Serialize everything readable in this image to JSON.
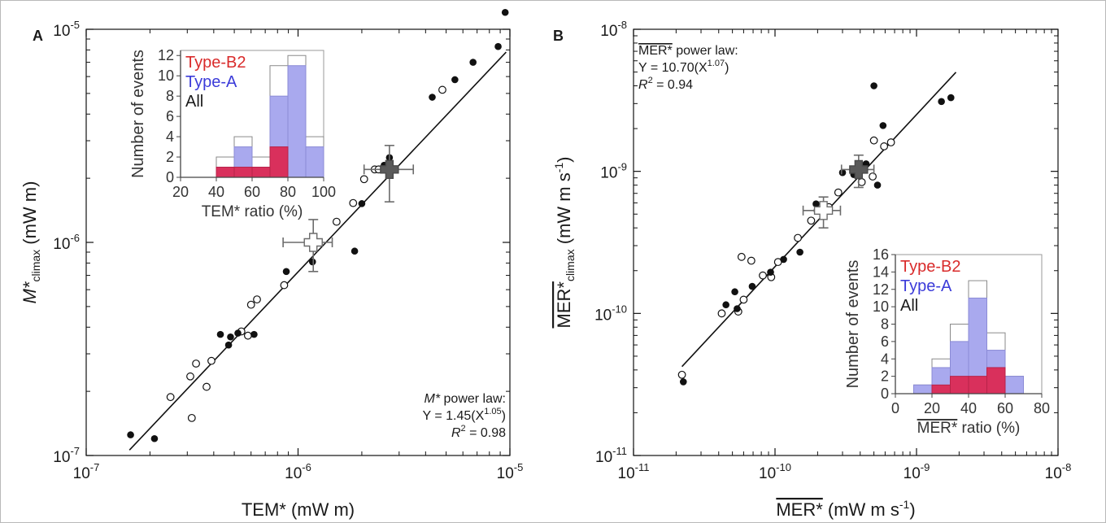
{
  "chart_data": [
    {
      "type": "scatter",
      "panel_label": "A",
      "scale": "log",
      "xlim": [
        1e-07,
        1e-05
      ],
      "ylim": [
        1e-07,
        1e-05
      ],
      "x_ticks": [
        {
          "value": 1e-07,
          "base": "10",
          "exp": "-7"
        },
        {
          "value": 1e-06,
          "base": "10",
          "exp": "-6"
        },
        {
          "value": 1e-05,
          "base": "10",
          "exp": "-5"
        }
      ],
      "y_ticks": [
        {
          "value": 1e-07,
          "base": "10",
          "exp": "-7"
        },
        {
          "value": 1e-06,
          "base": "10",
          "exp": "-6"
        },
        {
          "value": 1e-05,
          "base": "10",
          "exp": "-5"
        }
      ],
      "xlabel": "TEM* (mW m)",
      "ylabel": {
        "main": "M*",
        "sub": "climax",
        "unit": " (mW m)"
      },
      "fit": {
        "title_sym": "M*",
        "title_rest": " power law:",
        "eq_pre": "Y = 1.45(X",
        "eq_exp": "1.05",
        "eq_post": ")",
        "r2_label": "R",
        "r2_value": " = 0.98",
        "x_range": [
          1.6e-07,
          9.6e-06
        ],
        "coef": 1.45,
        "power": 1.05
      },
      "filled": [
        [
          1.62e-07,
          1.25e-07
        ],
        [
          2.1e-07,
          1.2e-07
        ],
        [
          4.3e-07,
          3.7e-07
        ],
        [
          4.7e-07,
          3.3e-07
        ],
        [
          4.8e-07,
          3.6e-07
        ],
        [
          5.2e-07,
          3.75e-07
        ],
        [
          6.2e-07,
          3.7e-07
        ],
        [
          8.8e-07,
          7.3e-07
        ],
        [
          1.17e-06,
          8.1e-07
        ],
        [
          1.85e-06,
          9.1e-07
        ],
        [
          2e-06,
          1.52e-06
        ],
        [
          2.55e-06,
          2.3e-06
        ],
        [
          2.7e-06,
          2.5e-06
        ],
        [
          4.3e-06,
          4.8e-06
        ],
        [
          5.5e-06,
          5.8e-06
        ],
        [
          6.7e-06,
          7e-06
        ],
        [
          8.8e-06,
          8.3e-06
        ],
        [
          9.5e-06,
          1.2e-05
        ]
      ],
      "open": [
        [
          2.5e-07,
          1.88e-07
        ],
        [
          3.1e-07,
          2.35e-07
        ],
        [
          3.15e-07,
          1.5e-07
        ],
        [
          3.3e-07,
          2.7e-07
        ],
        [
          3.7e-07,
          2.1e-07
        ],
        [
          3.9e-07,
          2.78e-07
        ],
        [
          5.4e-07,
          3.82e-07
        ],
        [
          5.8e-07,
          3.65e-07
        ],
        [
          6e-07,
          5.1e-07
        ],
        [
          6.4e-07,
          5.4e-07
        ],
        [
          8.6e-07,
          6.3e-07
        ],
        [
          1.52e-06,
          1.25e-06
        ],
        [
          1.82e-06,
          1.53e-06
        ],
        [
          2.05e-06,
          1.98e-06
        ],
        [
          2.3e-06,
          2.2e-06
        ],
        [
          2.4e-06,
          2.2e-06
        ],
        [
          4.8e-06,
          5.2e-06
        ]
      ],
      "mean_open": {
        "x": 1.18e-06,
        "y": 1e-06,
        "xerr": [
          8.5e-07,
          1.45e-06
        ],
        "yerr": [
          7.3e-07,
          1.28e-06
        ]
      },
      "mean_filled": {
        "x": 2.7e-06,
        "y": 2.2e-06,
        "xerr": [
          2.05e-06,
          3.5e-06
        ],
        "yerr": [
          1.55e-06,
          2.85e-06
        ]
      },
      "inset": {
        "type": "bar",
        "x_ticks": [
          20,
          40,
          60,
          80,
          100
        ],
        "xlim": [
          20,
          100
        ],
        "y_ticks": [
          0,
          2,
          4,
          6,
          8,
          10,
          12
        ],
        "ylim": [
          0,
          12.5
        ],
        "xlabel": "TEM* ratio (%)",
        "ylabel": "Number of events",
        "bins": [
          40,
          50,
          60,
          70,
          80,
          90,
          100
        ],
        "series": [
          {
            "name": "All",
            "color": "#ffffff",
            "values": [
              2,
              4,
              2,
              11,
              12,
              4
            ]
          },
          {
            "name": "Type-A",
            "color": "#a9a9ee",
            "values": [
              1,
              3,
              1,
              8,
              11,
              3
            ]
          },
          {
            "name": "Type-B2",
            "color": "#d9305c",
            "values": [
              1,
              1,
              1,
              3,
              0,
              0
            ]
          }
        ]
      }
    },
    {
      "type": "scatter",
      "panel_label": "B",
      "scale": "log",
      "xlim": [
        1e-11,
        1e-08
      ],
      "ylim": [
        1e-11,
        1e-08
      ],
      "x_ticks": [
        {
          "value": 1e-11,
          "base": "10",
          "exp": "-11"
        },
        {
          "value": 1e-10,
          "base": "10",
          "exp": "-10"
        },
        {
          "value": 1e-09,
          "base": "10",
          "exp": "-9"
        },
        {
          "value": 1e-08,
          "base": "10",
          "exp": "-8"
        }
      ],
      "y_ticks": [
        {
          "value": 1e-11,
          "base": "10",
          "exp": "-11"
        },
        {
          "value": 1e-10,
          "base": "10",
          "exp": "-10"
        },
        {
          "value": 1e-09,
          "base": "10",
          "exp": "-9"
        },
        {
          "value": 1e-08,
          "base": "10",
          "exp": "-8"
        }
      ],
      "xlabel": {
        "main": "MER*",
        "unit": " (mW m s",
        "exp": "-1",
        "close": ")"
      },
      "ylabel": {
        "main": "MER*",
        "sub": "climax",
        "unit": " (mW m s",
        "exp": "-1",
        "close": ")"
      },
      "fit": {
        "title_sym": "MER*",
        "title_rest": " power law:",
        "eq_pre": "Y = 10.70(X",
        "eq_exp": "1.07",
        "eq_post": ")",
        "r2_label": "R",
        "r2_value": " = 0.94",
        "x_range": [
          2.2e-11,
          1.9e-09
        ],
        "coef": 10.7,
        "power": 1.07
      },
      "filled": [
        [
          2.25e-11,
          3.3e-11
        ],
        [
          4.5e-11,
          1.15e-10
        ],
        [
          5.2e-11,
          1.42e-10
        ],
        [
          5.4e-11,
          1.08e-10
        ],
        [
          6.9e-11,
          1.55e-10
        ],
        [
          9.3e-11,
          1.95e-10
        ],
        [
          1.15e-10,
          2.4e-10
        ],
        [
          1.5e-10,
          2.7e-10
        ],
        [
          1.95e-10,
          5.9e-10
        ],
        [
          3e-10,
          9.8e-10
        ],
        [
          3.6e-10,
          9.5e-10
        ],
        [
          4.4e-10,
          1.13e-09
        ],
        [
          5e-10,
          4e-09
        ],
        [
          5.3e-10,
          8e-10
        ],
        [
          5.8e-10,
          2.1e-09
        ],
        [
          1.5e-09,
          3.1e-09
        ],
        [
          1.75e-09,
          3.3e-09
        ]
      ],
      "open": [
        [
          2.2e-11,
          3.7e-11
        ],
        [
          4.2e-11,
          1e-10
        ],
        [
          5.5e-11,
          1.03e-10
        ],
        [
          5.8e-11,
          2.5e-10
        ],
        [
          6e-11,
          1.25e-10
        ],
        [
          6.8e-11,
          2.35e-10
        ],
        [
          8.2e-11,
          1.85e-10
        ],
        [
          9.4e-11,
          1.8e-10
        ],
        [
          1.05e-10,
          2.3e-10
        ],
        [
          1.45e-10,
          3.4e-10
        ],
        [
          1.8e-10,
          4.5e-10
        ],
        [
          2e-10,
          5.3e-10
        ],
        [
          2.4e-10,
          5.6e-10
        ],
        [
          2.8e-10,
          7.1e-10
        ],
        [
          3.8e-10,
          9.6e-10
        ],
        [
          4.1e-10,
          8.4e-10
        ],
        [
          4.9e-10,
          9.2e-10
        ],
        [
          5e-10,
          1.65e-09
        ],
        [
          5.9e-10,
          1.5e-09
        ],
        [
          6.6e-10,
          1.6e-09
        ]
      ],
      "mean_open": {
        "x": 2.2e-10,
        "y": 5.3e-10,
        "xerr": [
          1.58e-10,
          2.9e-10
        ],
        "yerr": [
          4e-10,
          6.6e-10
        ]
      },
      "mean_filled": {
        "x": 3.9e-10,
        "y": 1.03e-09,
        "xerr": [
          2.95e-10,
          5e-10
        ],
        "yerr": [
          7.7e-10,
          1.3e-09
        ]
      },
      "inset": {
        "type": "bar",
        "x_ticks": [
          0,
          20,
          40,
          60,
          80
        ],
        "xlim": [
          0,
          80
        ],
        "y_ticks": [
          0,
          2,
          4,
          6,
          8,
          10,
          12,
          14,
          16
        ],
        "ylim": [
          0,
          16
        ],
        "xlabel": {
          "main": "MER*",
          "rest": " ratio (%)"
        },
        "ylabel": "Number of events",
        "bins": [
          10,
          20,
          30,
          40,
          50,
          60,
          70
        ],
        "series": [
          {
            "name": "All",
            "color": "#ffffff",
            "values": [
              1,
              4,
              8,
              13,
              7,
              2
            ]
          },
          {
            "name": "Type-A",
            "color": "#a9a9ee",
            "values": [
              1,
              3,
              6,
              11,
              5,
              2
            ]
          },
          {
            "name": "Type-B2",
            "color": "#d9305c",
            "values": [
              0,
              1,
              2,
              2,
              3,
              0
            ]
          }
        ]
      }
    }
  ]
}
